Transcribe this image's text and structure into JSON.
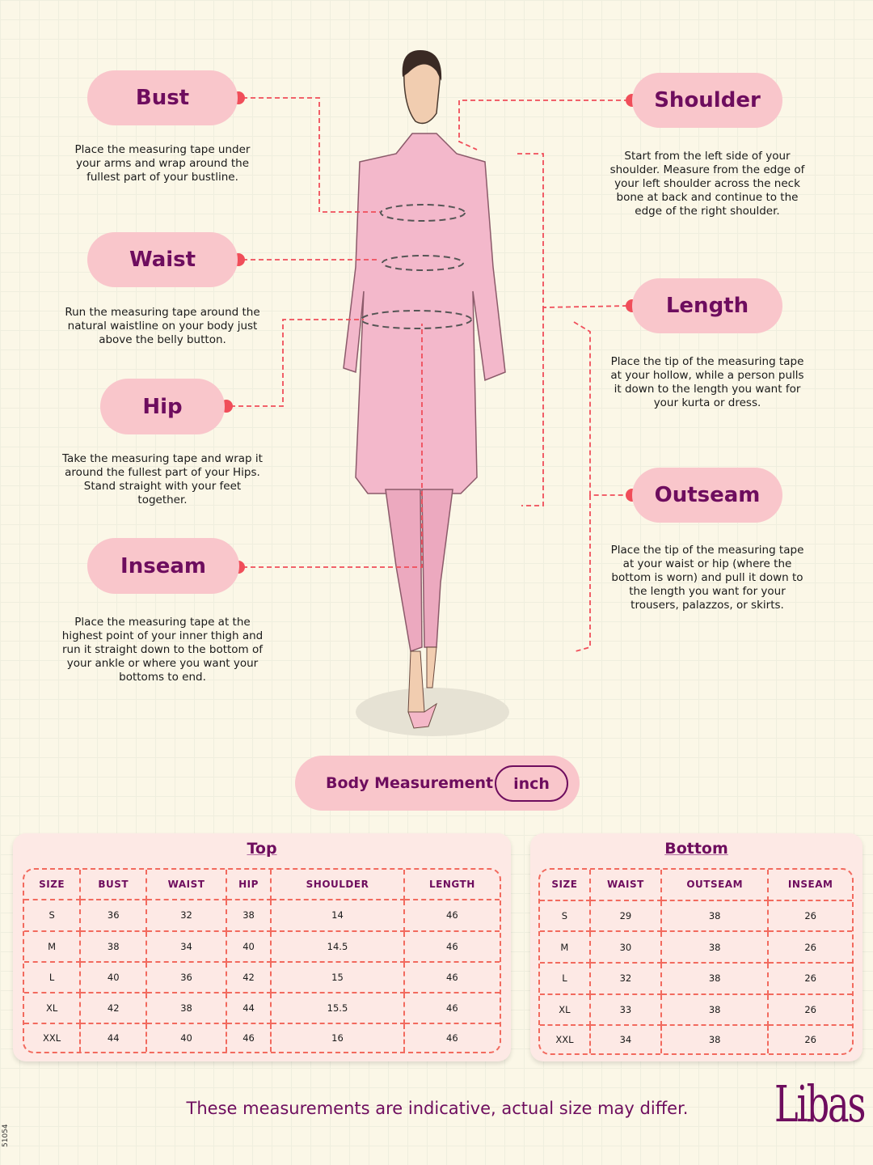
{
  "measurements": {
    "bust": {
      "label": "Bust",
      "description": "Place the measuring tape under your arms and wrap around the fullest part of your bustline."
    },
    "waist": {
      "label": "Waist",
      "description": "Run the measuring tape around the natural waistline on your body just above the belly button."
    },
    "hip": {
      "label": "Hip",
      "description": "Take the measuring tape and wrap it around the fullest part of your Hips. Stand straight with your feet together."
    },
    "inseam": {
      "label": "Inseam",
      "description": "Place the measuring tape at the highest point of your inner thigh and run it straight down to the bottom of your ankle or where you want your bottoms to end."
    },
    "shoulder": {
      "label": "Shoulder",
      "description": "Start from the left side of your shoulder. Measure from the edge of your left shoulder across the neck bone at back and continue to the edge of the right shoulder."
    },
    "length": {
      "label": "Length",
      "description": "Place the tip of the measuring tape at your hollow, while a person pulls it down to the length you want for your kurta or dress."
    },
    "outseam": {
      "label": "Outseam",
      "description": "Place the tip of the measuring tape at your waist or hip (where the bottom is worn) and pull it down to the length you want for your trousers, palazzos, or skirts."
    }
  },
  "unit_selector": {
    "label": "Body Measurement",
    "unit": "inch"
  },
  "top_table": {
    "title": "Top",
    "headers": [
      "SIZE",
      "BUST",
      "WAIST",
      "HIP",
      "SHOULDER",
      "LENGTH"
    ],
    "rows": [
      [
        "S",
        "36",
        "32",
        "38",
        "14",
        "46"
      ],
      [
        "M",
        "38",
        "34",
        "40",
        "14.5",
        "46"
      ],
      [
        "L",
        "40",
        "36",
        "42",
        "15",
        "46"
      ],
      [
        "XL",
        "42",
        "38",
        "44",
        "15.5",
        "46"
      ],
      [
        "XXL",
        "44",
        "40",
        "46",
        "16",
        "46"
      ]
    ]
  },
  "bottom_table": {
    "title": "Bottom",
    "headers": [
      "SIZE",
      "WAIST",
      "OUTSEAM",
      "INSEAM"
    ],
    "rows": [
      [
        "S",
        "29",
        "38",
        "26"
      ],
      [
        "M",
        "30",
        "38",
        "26"
      ],
      [
        "L",
        "32",
        "38",
        "26"
      ],
      [
        "XL",
        "33",
        "38",
        "26"
      ],
      [
        "XXL",
        "34",
        "38",
        "26"
      ]
    ]
  },
  "disclaimer": "These measurements are indicative, actual size may differ.",
  "brand": "Libas",
  "code": "51054",
  "colors": {
    "accent": "#6e0d5e",
    "pill": "#f9c6cb",
    "dashed": "#f04e5a",
    "background": "#fbf7e7"
  }
}
